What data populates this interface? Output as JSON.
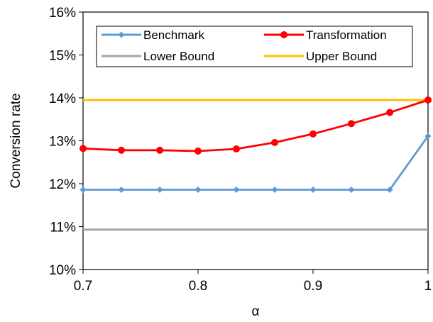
{
  "chart_data": {
    "type": "line",
    "title": "",
    "xlabel": "α",
    "ylabel": "Conversion rate",
    "xlim": [
      0.7,
      1.0
    ],
    "ylim": [
      0.1,
      0.16
    ],
    "x_ticks": [
      0.7,
      0.8,
      0.9,
      1.0
    ],
    "x_tick_labels": [
      "0.7",
      "0.8",
      "0.9",
      "1"
    ],
    "y_ticks": [
      0.1,
      0.11,
      0.12,
      0.13,
      0.14,
      0.15,
      0.16
    ],
    "y_tick_labels": [
      "10%",
      "11%",
      "12%",
      "13%",
      "14%",
      "15%",
      "16%"
    ],
    "grid": false,
    "legend": {
      "placement": "top",
      "columns": 2,
      "entries": [
        "Benchmark",
        "Transformation",
        "Lower Bound",
        "Upper Bound"
      ]
    },
    "series": [
      {
        "name": "Benchmark",
        "color": "#5b9bd5",
        "marker": "diamond",
        "x": [
          0.7,
          0.7333,
          0.7667,
          0.8,
          0.8333,
          0.8667,
          0.9,
          0.9333,
          0.9667,
          1.0
        ],
        "values": [
          0.1186,
          0.1186,
          0.1186,
          0.1186,
          0.1186,
          0.1186,
          0.1186,
          0.1186,
          0.1186,
          0.1311
        ]
      },
      {
        "name": "Transformation",
        "color": "#ff0000",
        "marker": "circle",
        "x": [
          0.7,
          0.7333,
          0.7667,
          0.8,
          0.8333,
          0.8667,
          0.9,
          0.9333,
          0.9667,
          1.0
        ],
        "values": [
          0.1282,
          0.1278,
          0.1278,
          0.1276,
          0.1281,
          0.1296,
          0.1316,
          0.134,
          0.1366,
          0.1395
        ]
      },
      {
        "name": "Lower Bound",
        "color": "#a5a5a5",
        "marker": "none",
        "x": [
          0.7,
          1.0
        ],
        "values": [
          0.1093,
          0.1093
        ]
      },
      {
        "name": "Upper Bound",
        "color": "#ffc000",
        "marker": "none",
        "x": [
          0.7,
          1.0
        ],
        "values": [
          0.1395,
          0.1395
        ]
      }
    ]
  }
}
